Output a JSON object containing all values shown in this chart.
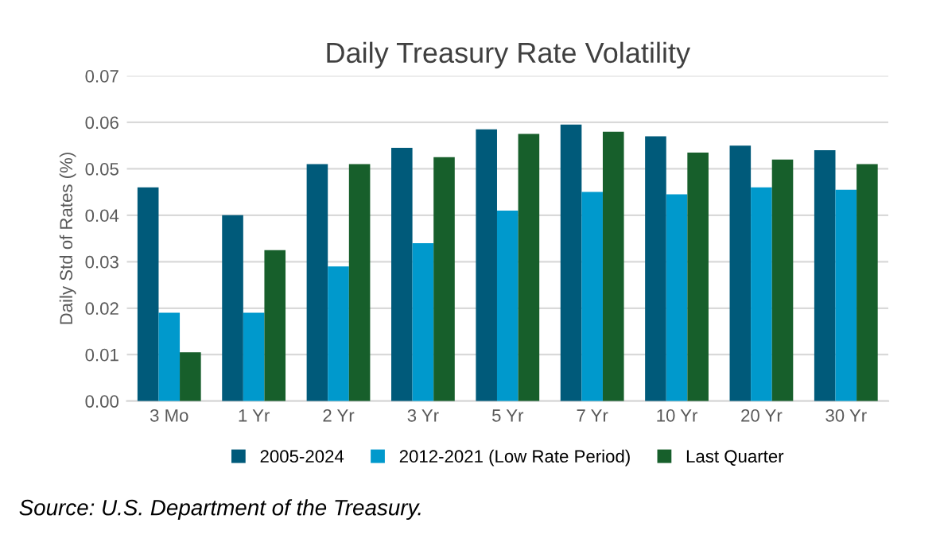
{
  "chart_data": {
    "type": "bar",
    "title": "Daily Treasury Rate Volatility",
    "ylabel": "Daily Std of Rates (%)",
    "categories": [
      "3 Mo",
      "1 Yr",
      "2 Yr",
      "3 Yr",
      "5 Yr",
      "7 Yr",
      "10 Yr",
      "20 Yr",
      "30 Yr"
    ],
    "series": [
      {
        "name": "2005-2024",
        "color": "#005a7a",
        "values": [
          0.046,
          0.04,
          0.051,
          0.0545,
          0.0585,
          0.0595,
          0.057,
          0.055,
          0.054
        ]
      },
      {
        "name": "2012-2021 (Low Rate Period)",
        "color": "#0099cc",
        "values": [
          0.019,
          0.019,
          0.029,
          0.034,
          0.041,
          0.045,
          0.0445,
          0.046,
          0.0455
        ]
      },
      {
        "name": "Last Quarter",
        "color": "#175f2b",
        "values": [
          0.0105,
          0.0325,
          0.051,
          0.0525,
          0.0575,
          0.058,
          0.0535,
          0.052,
          0.051
        ]
      }
    ],
    "ylim": [
      0,
      0.07
    ],
    "yticks": [
      {
        "value": 0,
        "label": "0.00"
      },
      0.01,
      0.02,
      0.03,
      0.04,
      0.05,
      0.06,
      0.07
    ],
    "grid": "y",
    "legend": "bottom",
    "annotations": [
      "Source: U.S. Department of the Treasury."
    ]
  }
}
